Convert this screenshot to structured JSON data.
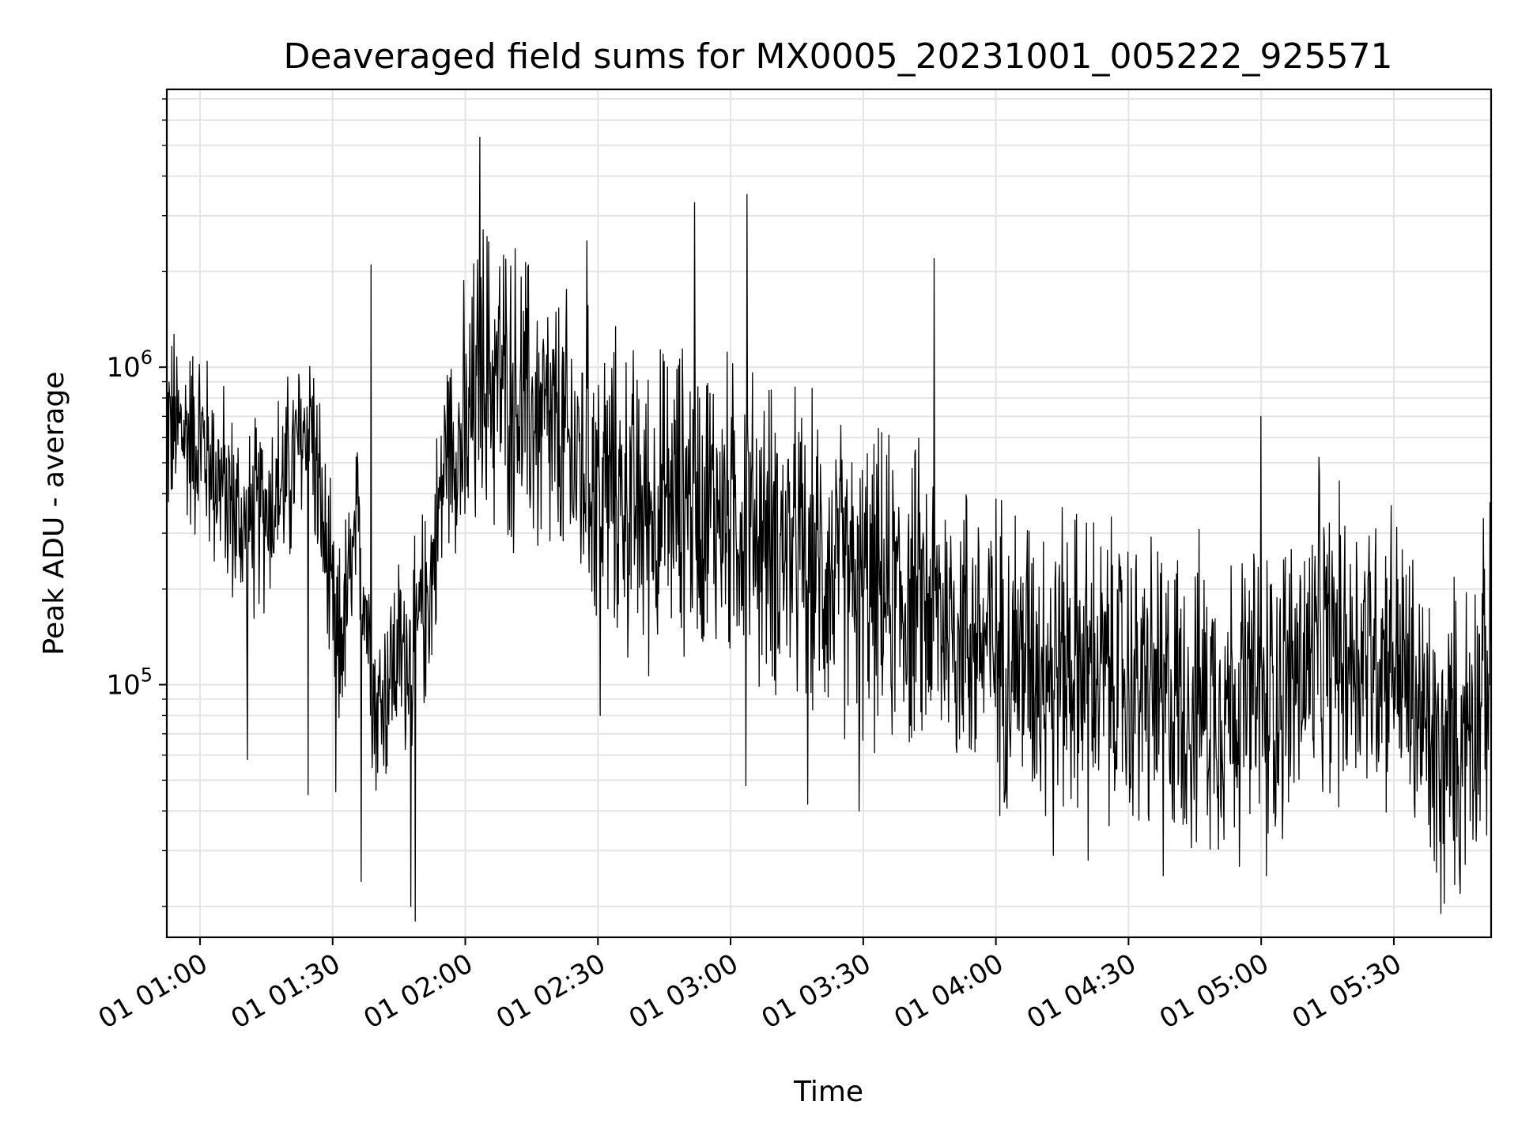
{
  "chart_data": {
    "type": "line",
    "title": "Deaveraged field sums for MX0005_20231001_005222_925571",
    "xlabel": "Time",
    "ylabel": "Peak ADU - average",
    "x_axis": "time",
    "x_ticks": [
      "01 01:00",
      "01 01:30",
      "01 02:00",
      "01 02:30",
      "01 03:00",
      "01 03:30",
      "01 04:00",
      "01 04:30",
      "01 05:00",
      "01 05:30"
    ],
    "y_scale": "log",
    "y_ticks": [
      {
        "value": 100000,
        "base": "10",
        "exp": "5"
      },
      {
        "value": 1000000,
        "base": "10",
        "exp": "6"
      }
    ],
    "xlim": [
      "2023-10-01T00:52:30",
      "2023-10-01T05:52:00"
    ],
    "ylim": [
      16000,
      7500000
    ],
    "grid": true,
    "line_color": "#000000",
    "series": [
      {
        "x": [
          "2023-10-01T00:52:30",
          "2023-10-01T01:00:00",
          "2023-10-01T01:10:00",
          "2023-10-01T01:20:00",
          "2023-10-01T01:25:00",
          "2023-10-01T01:31:00",
          "2023-10-01T01:36:00",
          "2023-10-01T01:40:00",
          "2023-10-01T01:44:00",
          "2023-10-01T01:48:00",
          "2023-10-01T01:52:00",
          "2023-10-01T01:56:00",
          "2023-10-01T02:00:00",
          "2023-10-01T02:04:00",
          "2023-10-01T02:10:00",
          "2023-10-01T02:20:00",
          "2023-10-01T02:30:00",
          "2023-10-01T02:40:00",
          "2023-10-01T02:50:00",
          "2023-10-01T03:00:00",
          "2023-10-01T03:15:00",
          "2023-10-01T03:30:00",
          "2023-10-01T03:45:00",
          "2023-10-01T04:00:00",
          "2023-10-01T04:15:00",
          "2023-10-01T04:30:00",
          "2023-10-01T04:45:00",
          "2023-10-01T05:00:00",
          "2023-10-01T05:15:00",
          "2023-10-01T05:30:00",
          "2023-10-01T05:40:00",
          "2023-10-01T05:52:00"
        ],
        "values": [
          650000,
          600000,
          300000,
          450000,
          700000,
          120000,
          300000,
          80000,
          120000,
          130000,
          200000,
          600000,
          550000,
          1000000,
          850000,
          600000,
          450000,
          350000,
          400000,
          350000,
          260000,
          200000,
          180000,
          130000,
          120000,
          100000,
          90000,
          90000,
          130000,
          130000,
          55000,
          110000
        ]
      }
    ],
    "spikes": [
      {
        "x": "2023-10-01T01:38:40",
        "value": 2100000
      },
      {
        "x": "2023-10-01T02:03:20",
        "value": 5300000
      },
      {
        "x": "2023-10-01T02:27:30",
        "value": 2500000
      },
      {
        "x": "2023-10-01T02:51:50",
        "value": 3300000
      },
      {
        "x": "2023-10-01T03:03:40",
        "value": 3500000
      },
      {
        "x": "2023-10-01T03:46:00",
        "value": 2200000
      },
      {
        "x": "2023-10-01T05:00:00",
        "value": 700000
      },
      {
        "x": "2023-10-01T05:13:00",
        "value": 520000
      }
    ],
    "dips": [
      {
        "x": "2023-10-01T01:10:40",
        "value": 58000
      },
      {
        "x": "2023-10-01T01:24:30",
        "value": 45000
      },
      {
        "x": "2023-10-01T01:30:40",
        "value": 46000
      },
      {
        "x": "2023-10-01T01:36:30",
        "value": 24000
      },
      {
        "x": "2023-10-01T01:47:40",
        "value": 20000
      },
      {
        "x": "2023-10-01T01:48:40",
        "value": 18000
      },
      {
        "x": "2023-10-01T02:30:30",
        "value": 80000
      },
      {
        "x": "2023-10-01T03:03:30",
        "value": 48000
      },
      {
        "x": "2023-10-01T03:17:30",
        "value": 42000
      },
      {
        "x": "2023-10-01T03:29:00",
        "value": 40000
      },
      {
        "x": "2023-10-01T04:13:00",
        "value": 29000
      },
      {
        "x": "2023-10-01T04:20:50",
        "value": 28000
      },
      {
        "x": "2023-10-01T04:37:50",
        "value": 25000
      },
      {
        "x": "2023-10-01T05:01:10",
        "value": 25000
      },
      {
        "x": "2023-10-01T05:40:40",
        "value": 19000
      },
      {
        "x": "2023-10-01T05:45:00",
        "value": 22000
      }
    ]
  }
}
